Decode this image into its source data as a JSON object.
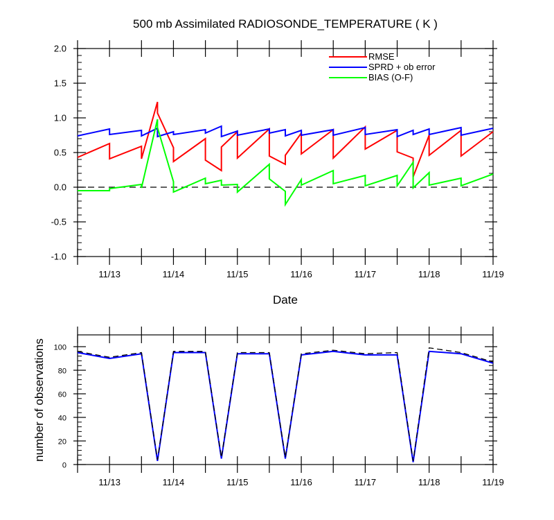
{
  "chart_data": [
    {
      "type": "line",
      "title": "500 mb Assimilated RADIOSONDE_TEMPERATURE ( K )",
      "xlabel": "Date",
      "ylabel": "",
      "ylim": [
        -1.0,
        2.0
      ],
      "y_ticks": [
        "-1.0",
        "-0.5",
        "0.0",
        "0.5",
        "1.0",
        "1.5",
        "2.0"
      ],
      "y_tick_values": [
        -1.0,
        -0.5,
        0.0,
        0.5,
        1.0,
        1.5,
        2.0
      ],
      "x_tick_labels": [
        "11/13",
        "11/14",
        "11/15",
        "11/16",
        "11/17",
        "11/18",
        "11/19"
      ],
      "x_tick_values": [
        1.0,
        2.0,
        3.0,
        4.0,
        5.0,
        6.0,
        7.0
      ],
      "xlim": [
        0.5,
        7.0
      ],
      "x_unit_note": "x = day offset from 11/12 00Z",
      "zero_line": true,
      "legend_position": "top-right",
      "series": [
        {
          "name": "RMSE",
          "color": "#ff0000",
          "x": [
            0.5,
            1.0,
            1.0,
            1.5,
            1.5,
            1.75,
            1.75,
            2.0,
            2.0,
            2.5,
            2.5,
            2.75,
            2.75,
            3.0,
            3.0,
            3.5,
            3.5,
            3.75,
            3.75,
            4.0,
            4.0,
            4.5,
            4.5,
            5.0,
            5.0,
            5.5,
            5.5,
            5.75,
            5.75,
            6.0,
            6.0,
            6.5,
            6.5,
            7.0
          ],
          "y": [
            0.43,
            0.63,
            0.41,
            0.59,
            0.41,
            1.23,
            1.07,
            0.57,
            0.37,
            0.7,
            0.39,
            0.24,
            0.58,
            0.8,
            0.42,
            0.84,
            0.45,
            0.33,
            0.46,
            0.78,
            0.48,
            0.83,
            0.42,
            0.87,
            0.55,
            0.82,
            0.51,
            0.42,
            0.15,
            0.75,
            0.46,
            0.82,
            0.45,
            0.8
          ]
        },
        {
          "name": "SPRD + ob error",
          "color": "#0000ff",
          "x": [
            0.5,
            1.0,
            1.0,
            1.5,
            1.5,
            1.75,
            1.75,
            2.0,
            2.0,
            2.5,
            2.5,
            2.75,
            2.75,
            3.0,
            3.0,
            3.5,
            3.5,
            3.75,
            3.75,
            4.0,
            4.0,
            4.5,
            4.5,
            5.0,
            5.0,
            5.5,
            5.5,
            5.75,
            5.75,
            6.0,
            6.0,
            6.5,
            6.5,
            7.0
          ],
          "y": [
            0.74,
            0.84,
            0.76,
            0.82,
            0.74,
            0.85,
            0.73,
            0.8,
            0.76,
            0.83,
            0.78,
            0.88,
            0.73,
            0.81,
            0.75,
            0.84,
            0.78,
            0.83,
            0.74,
            0.82,
            0.75,
            0.83,
            0.75,
            0.86,
            0.76,
            0.83,
            0.73,
            0.82,
            0.76,
            0.84,
            0.76,
            0.86,
            0.75,
            0.85
          ]
        },
        {
          "name": "BIAS (O-F)",
          "color": "#00ff00",
          "x": [
            0.5,
            1.0,
            1.0,
            1.5,
            1.5,
            1.75,
            1.75,
            2.0,
            2.0,
            2.5,
            2.5,
            2.75,
            2.75,
            3.0,
            3.0,
            3.5,
            3.5,
            3.75,
            3.75,
            4.0,
            4.0,
            4.5,
            4.5,
            5.0,
            5.0,
            5.5,
            5.5,
            5.75,
            5.75,
            6.0,
            6.0,
            6.5,
            6.5,
            7.0
          ],
          "y": [
            -0.05,
            -0.05,
            -0.02,
            0.04,
            -0.01,
            0.98,
            0.86,
            0.08,
            -0.07,
            0.13,
            0.05,
            0.1,
            0.03,
            0.04,
            -0.07,
            0.33,
            0.12,
            -0.06,
            -0.25,
            0.11,
            0.03,
            0.24,
            0.05,
            0.17,
            0.02,
            0.17,
            0.02,
            0.36,
            -0.01,
            0.21,
            0.03,
            0.13,
            0.02,
            0.19
          ]
        }
      ]
    },
    {
      "type": "line",
      "title": "",
      "xlabel": "",
      "ylabel": "number of observations",
      "ylim": [
        0,
        110
      ],
      "y_ticks": [
        "0",
        "20",
        "40",
        "60",
        "80",
        "100"
      ],
      "y_tick_values": [
        0,
        20,
        40,
        60,
        80,
        100
      ],
      "x_tick_labels": [
        "11/13",
        "11/14",
        "11/15",
        "11/16",
        "11/17",
        "11/18",
        "11/19"
      ],
      "x_tick_values": [
        1.0,
        2.0,
        3.0,
        4.0,
        5.0,
        6.0,
        7.0
      ],
      "xlim": [
        0.5,
        7.0
      ],
      "series": [
        {
          "line_style": "solid",
          "color": "#0000ff",
          "x": [
            0.5,
            1.0,
            1.5,
            1.75,
            2.0,
            2.5,
            2.75,
            3.0,
            3.5,
            3.75,
            4.0,
            4.5,
            5.0,
            5.5,
            5.75,
            6.0,
            6.5,
            7.0
          ],
          "y": [
            95,
            90,
            94,
            3,
            95,
            95,
            5,
            94,
            94,
            5,
            93,
            96,
            93,
            93,
            2,
            96,
            94,
            86
          ]
        },
        {
          "line_style": "dashed",
          "color": "#000000",
          "x": [
            0.5,
            1.0,
            1.5,
            1.75,
            2.0,
            2.5,
            2.75,
            3.0,
            3.5,
            3.75,
            4.0,
            4.5,
            5.0,
            5.5,
            5.75,
            6.0,
            6.5,
            7.0
          ],
          "y": [
            96,
            91,
            95,
            4,
            96,
            96,
            6,
            95,
            95,
            6,
            94,
            97,
            94,
            95,
            3,
            99,
            95,
            87
          ]
        }
      ]
    }
  ]
}
